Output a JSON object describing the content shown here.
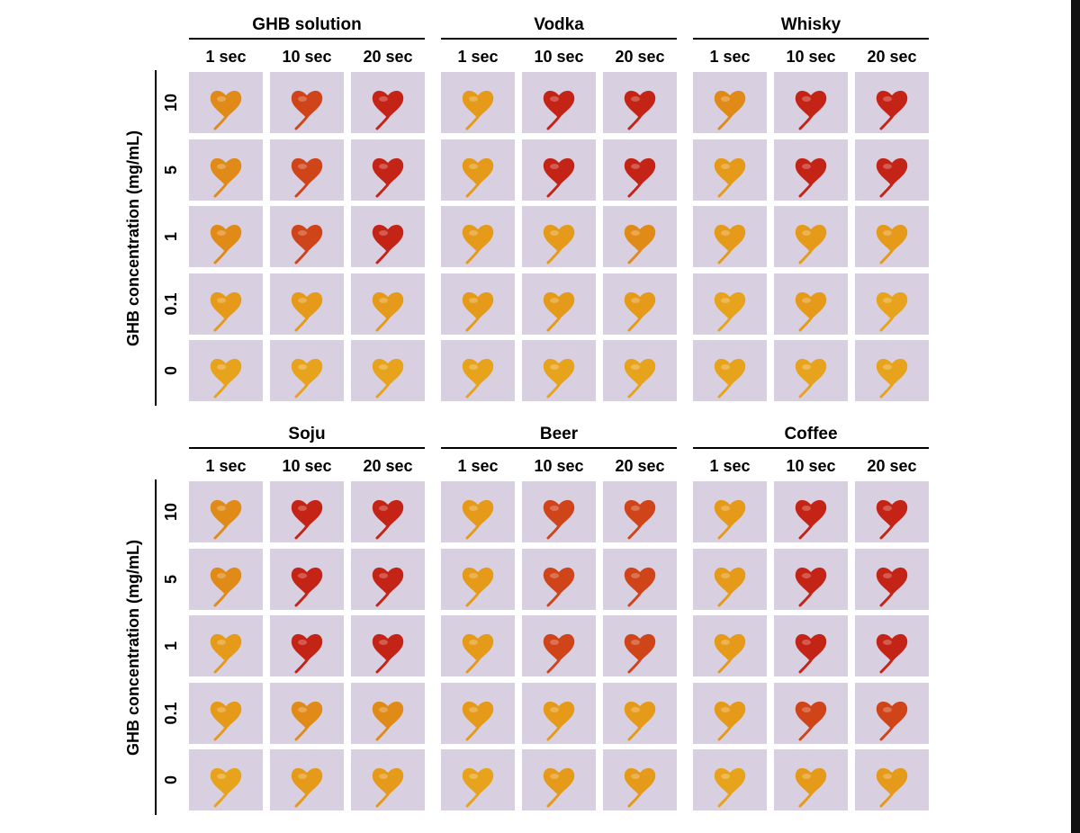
{
  "figure": {
    "y_axis_label": "GHB concentration (mg/mL)",
    "concentrations": [
      "10",
      "5",
      "1",
      "0.1",
      "0"
    ],
    "time_points": [
      "1 sec",
      "10 sec",
      "20 sec"
    ],
    "panels": [
      {
        "groups": [
          "GHB solution",
          "Vodka",
          "Whisky"
        ]
      },
      {
        "groups": [
          "Soju",
          "Beer",
          "Coffee"
        ]
      }
    ],
    "colors": {
      "background": "#ffffff",
      "paper": "#d8cfe0",
      "yellow": "#e8a31c",
      "orange": "#dc6a14",
      "red": "#c42416"
    },
    "spot_shape": "heart-shaped paper spot",
    "spot_levels": [
      [
        [
          3,
          5,
          6
        ],
        [
          3,
          5,
          6
        ],
        [
          3,
          5,
          6
        ],
        [
          2,
          2,
          2
        ],
        [
          1,
          1,
          1
        ]
      ],
      [
        [
          2,
          6,
          6
        ],
        [
          2,
          6,
          6
        ],
        [
          2,
          2,
          3
        ],
        [
          2,
          2,
          2
        ],
        [
          1,
          1,
          1
        ]
      ],
      [
        [
          3,
          6,
          6
        ],
        [
          2,
          6,
          6
        ],
        [
          2,
          2,
          2
        ],
        [
          1,
          2,
          1
        ],
        [
          1,
          1,
          1
        ]
      ],
      [
        [
          3,
          6,
          6
        ],
        [
          3,
          6,
          6
        ],
        [
          2,
          6,
          6
        ],
        [
          2,
          3,
          3
        ],
        [
          1,
          2,
          2
        ]
      ],
      [
        [
          2,
          5,
          5
        ],
        [
          2,
          5,
          5
        ],
        [
          2,
          5,
          5
        ],
        [
          2,
          2,
          2
        ],
        [
          1,
          2,
          2
        ]
      ],
      [
        [
          2,
          6,
          6
        ],
        [
          2,
          6,
          6
        ],
        [
          2,
          6,
          6
        ],
        [
          2,
          5,
          5
        ],
        [
          1,
          2,
          2
        ]
      ]
    ]
  }
}
